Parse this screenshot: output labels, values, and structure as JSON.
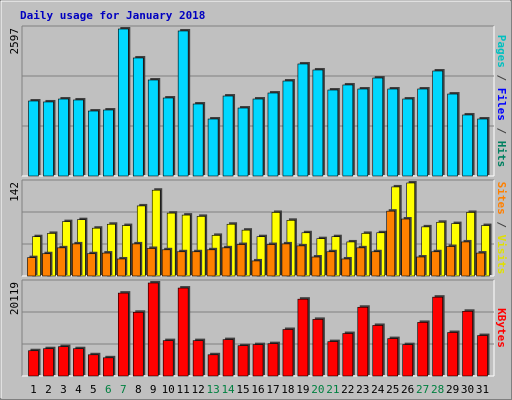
{
  "chart_data": [
    {
      "type": "bar",
      "title": "Daily usage for January 2018",
      "categories": [
        "1",
        "2",
        "3",
        "4",
        "5",
        "6",
        "7",
        "8",
        "9",
        "10",
        "11",
        "12",
        "13",
        "14",
        "15",
        "16",
        "17",
        "18",
        "19",
        "20",
        "21",
        "22",
        "23",
        "24",
        "25",
        "26",
        "27",
        "28",
        "29",
        "30",
        "31"
      ],
      "weekend_days": [
        6,
        7,
        13,
        14,
        20,
        21,
        27,
        28
      ],
      "weekend_color": "#008040",
      "legend": [
        {
          "text": "Pages",
          "color": "#00c0c0"
        },
        {
          "text": " / ",
          "color": "#404040"
        },
        {
          "text": "Files",
          "color": "#0000ff"
        },
        {
          "text": " / ",
          "color": "#404040"
        },
        {
          "text": "Hits",
          "color": "#008060"
        }
      ],
      "series": [
        {
          "color": "#00d8ff",
          "values": [
            1325,
            1308,
            1360,
            1343,
            1148,
            1166,
            2597,
            2085,
            1696,
            1378,
            2562,
            1272,
            1007,
            1413,
            1201,
            1360,
            1466,
            1678,
            1979,
            1873,
            1519,
            1608,
            1537,
            1731,
            1537,
            1360,
            1537,
            1855,
            1448,
            1078,
            1007
          ]
        }
      ],
      "ylim": [
        0,
        2597
      ],
      "yticks": [
        2597
      ]
    },
    {
      "type": "bar",
      "legend": [
        {
          "text": "Sites",
          "color": "#ff8000"
        },
        {
          "text": " / ",
          "color": "#404040"
        },
        {
          "text": "Visits",
          "color": "#e0e000"
        }
      ],
      "series": [
        {
          "color": "#ffff00",
          "values": [
            60,
            65,
            83,
            86,
            73,
            79,
            77,
            107,
            131,
            96,
            93,
            91,
            62,
            79,
            70,
            60,
            97,
            85,
            66,
            57,
            60,
            52,
            65,
            66,
            136,
            142,
            75,
            82,
            80,
            97,
            77
          ]
        },
        {
          "color": "#ff8000",
          "values": [
            28,
            34,
            43,
            49,
            34,
            35,
            26,
            49,
            42,
            40,
            37,
            37,
            40,
            43,
            48,
            23,
            48,
            49,
            46,
            29,
            37,
            26,
            43,
            37,
            99,
            87,
            29,
            37,
            45,
            52,
            35
          ]
        }
      ],
      "ylim": [
        0,
        142
      ],
      "yticks": [
        142
      ]
    },
    {
      "type": "bar",
      "legend": [
        {
          "text": "KBytes",
          "color": "#ff0000"
        }
      ],
      "series": [
        {
          "color": "#ff0000",
          "values": [
            5467,
            5905,
            6342,
            5905,
            4592,
            3936,
            17932,
            13777,
            20119,
            7654,
            19026,
            7654,
            4592,
            7873,
            6561,
            6779,
            6998,
            10059,
            16620,
            12246,
            7435,
            9185,
            14870,
            10934,
            8091,
            6779,
            11590,
            17057,
            9403,
            13996,
            8747
          ]
        }
      ],
      "ylim": [
        0,
        20119
      ],
      "yticks": [
        20119
      ]
    }
  ]
}
